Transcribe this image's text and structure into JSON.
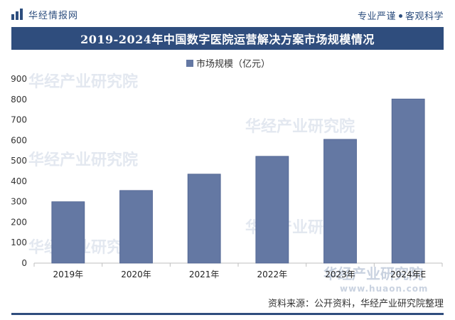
{
  "header": {
    "brand_name": "华经情报网",
    "slogan_left": "专业严谨",
    "slogan_right": "客观科学"
  },
  "chart_data": {
    "type": "bar",
    "title": "2019-2024年中国数字医院运营解决方案市场规模情况",
    "legend": {
      "label": "市场规模（亿元）",
      "position": "top-center"
    },
    "categories": [
      "2019年",
      "2020年",
      "2021年",
      "2022年",
      "2023年",
      "2024年E"
    ],
    "series": [
      {
        "name": "市场规模（亿元）",
        "values": [
          300,
          355,
          435,
          522,
          605,
          802
        ]
      }
    ],
    "ylim": [
      0,
      900
    ],
    "yticks": [
      0,
      100,
      200,
      300,
      400,
      500,
      600,
      700,
      800,
      900
    ],
    "xlabel": "",
    "ylabel": "",
    "grid": false,
    "colors": {
      "bar": "#6478a3",
      "bar_edge": "#4e6291"
    }
  },
  "watermark": {
    "text": "华经产业研究院",
    "url": "www.huaon.com"
  },
  "footer": {
    "source": "资料来源：公开资料，华经产业研究院整理"
  }
}
